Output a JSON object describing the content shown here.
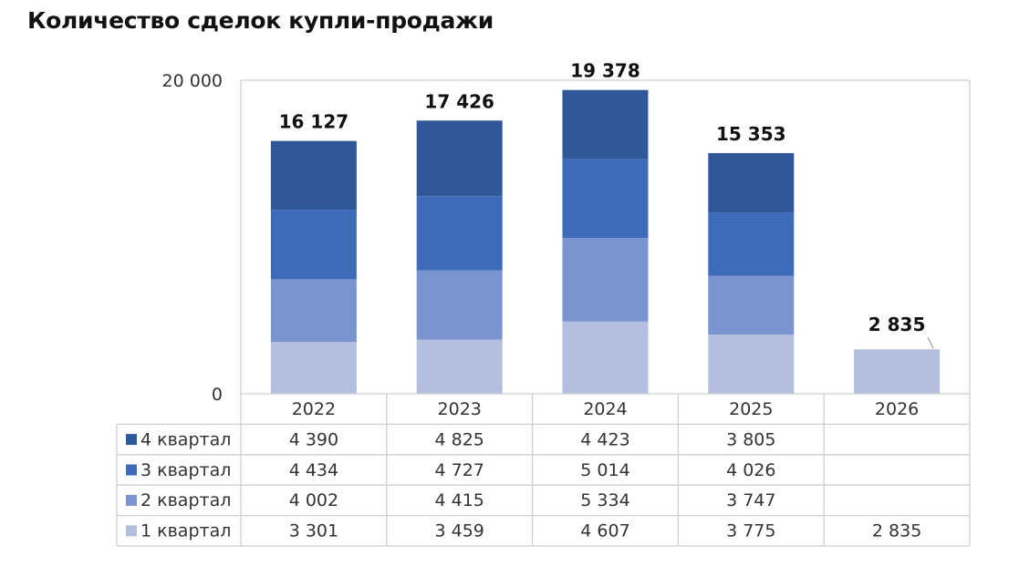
{
  "title": "Количество сделок купли-продажи",
  "chart_data": {
    "type": "bar",
    "stacked": true,
    "categories": [
      "2022",
      "2023",
      "2024",
      "2025",
      "2026"
    ],
    "ylim": [
      0,
      20000
    ],
    "y_ticks": [
      "0",
      "20 000"
    ],
    "grid": true,
    "legend": "table-left",
    "data_table": true,
    "series": [
      {
        "name": "1 квартал",
        "color": "#b4bedf",
        "values": [
          3301,
          3459,
          4607,
          3775,
          2835
        ],
        "labels": [
          "3 301",
          "3 459",
          "4 607",
          "3 775",
          "2 835"
        ]
      },
      {
        "name": "2 квартал",
        "color": "#7a94d0",
        "values": [
          4002,
          4415,
          5334,
          3747,
          null
        ],
        "labels": [
          "4 002",
          "4 415",
          "5 334",
          "3 747",
          ""
        ]
      },
      {
        "name": "3 квартал",
        "color": "#3d6bb9",
        "values": [
          4434,
          4727,
          5014,
          4026,
          null
        ],
        "labels": [
          "4 434",
          "4 727",
          "5 014",
          "4 026",
          ""
        ]
      },
      {
        "name": "4 квартал",
        "color": "#305899",
        "values": [
          4390,
          4825,
          4423,
          3805,
          null
        ],
        "labels": [
          "4 390",
          "4 825",
          "4 423",
          "3 805",
          ""
        ]
      }
    ],
    "totals": [
      "16 127",
      "17 426",
      "19 378",
      "15 353",
      "2 835"
    ]
  }
}
